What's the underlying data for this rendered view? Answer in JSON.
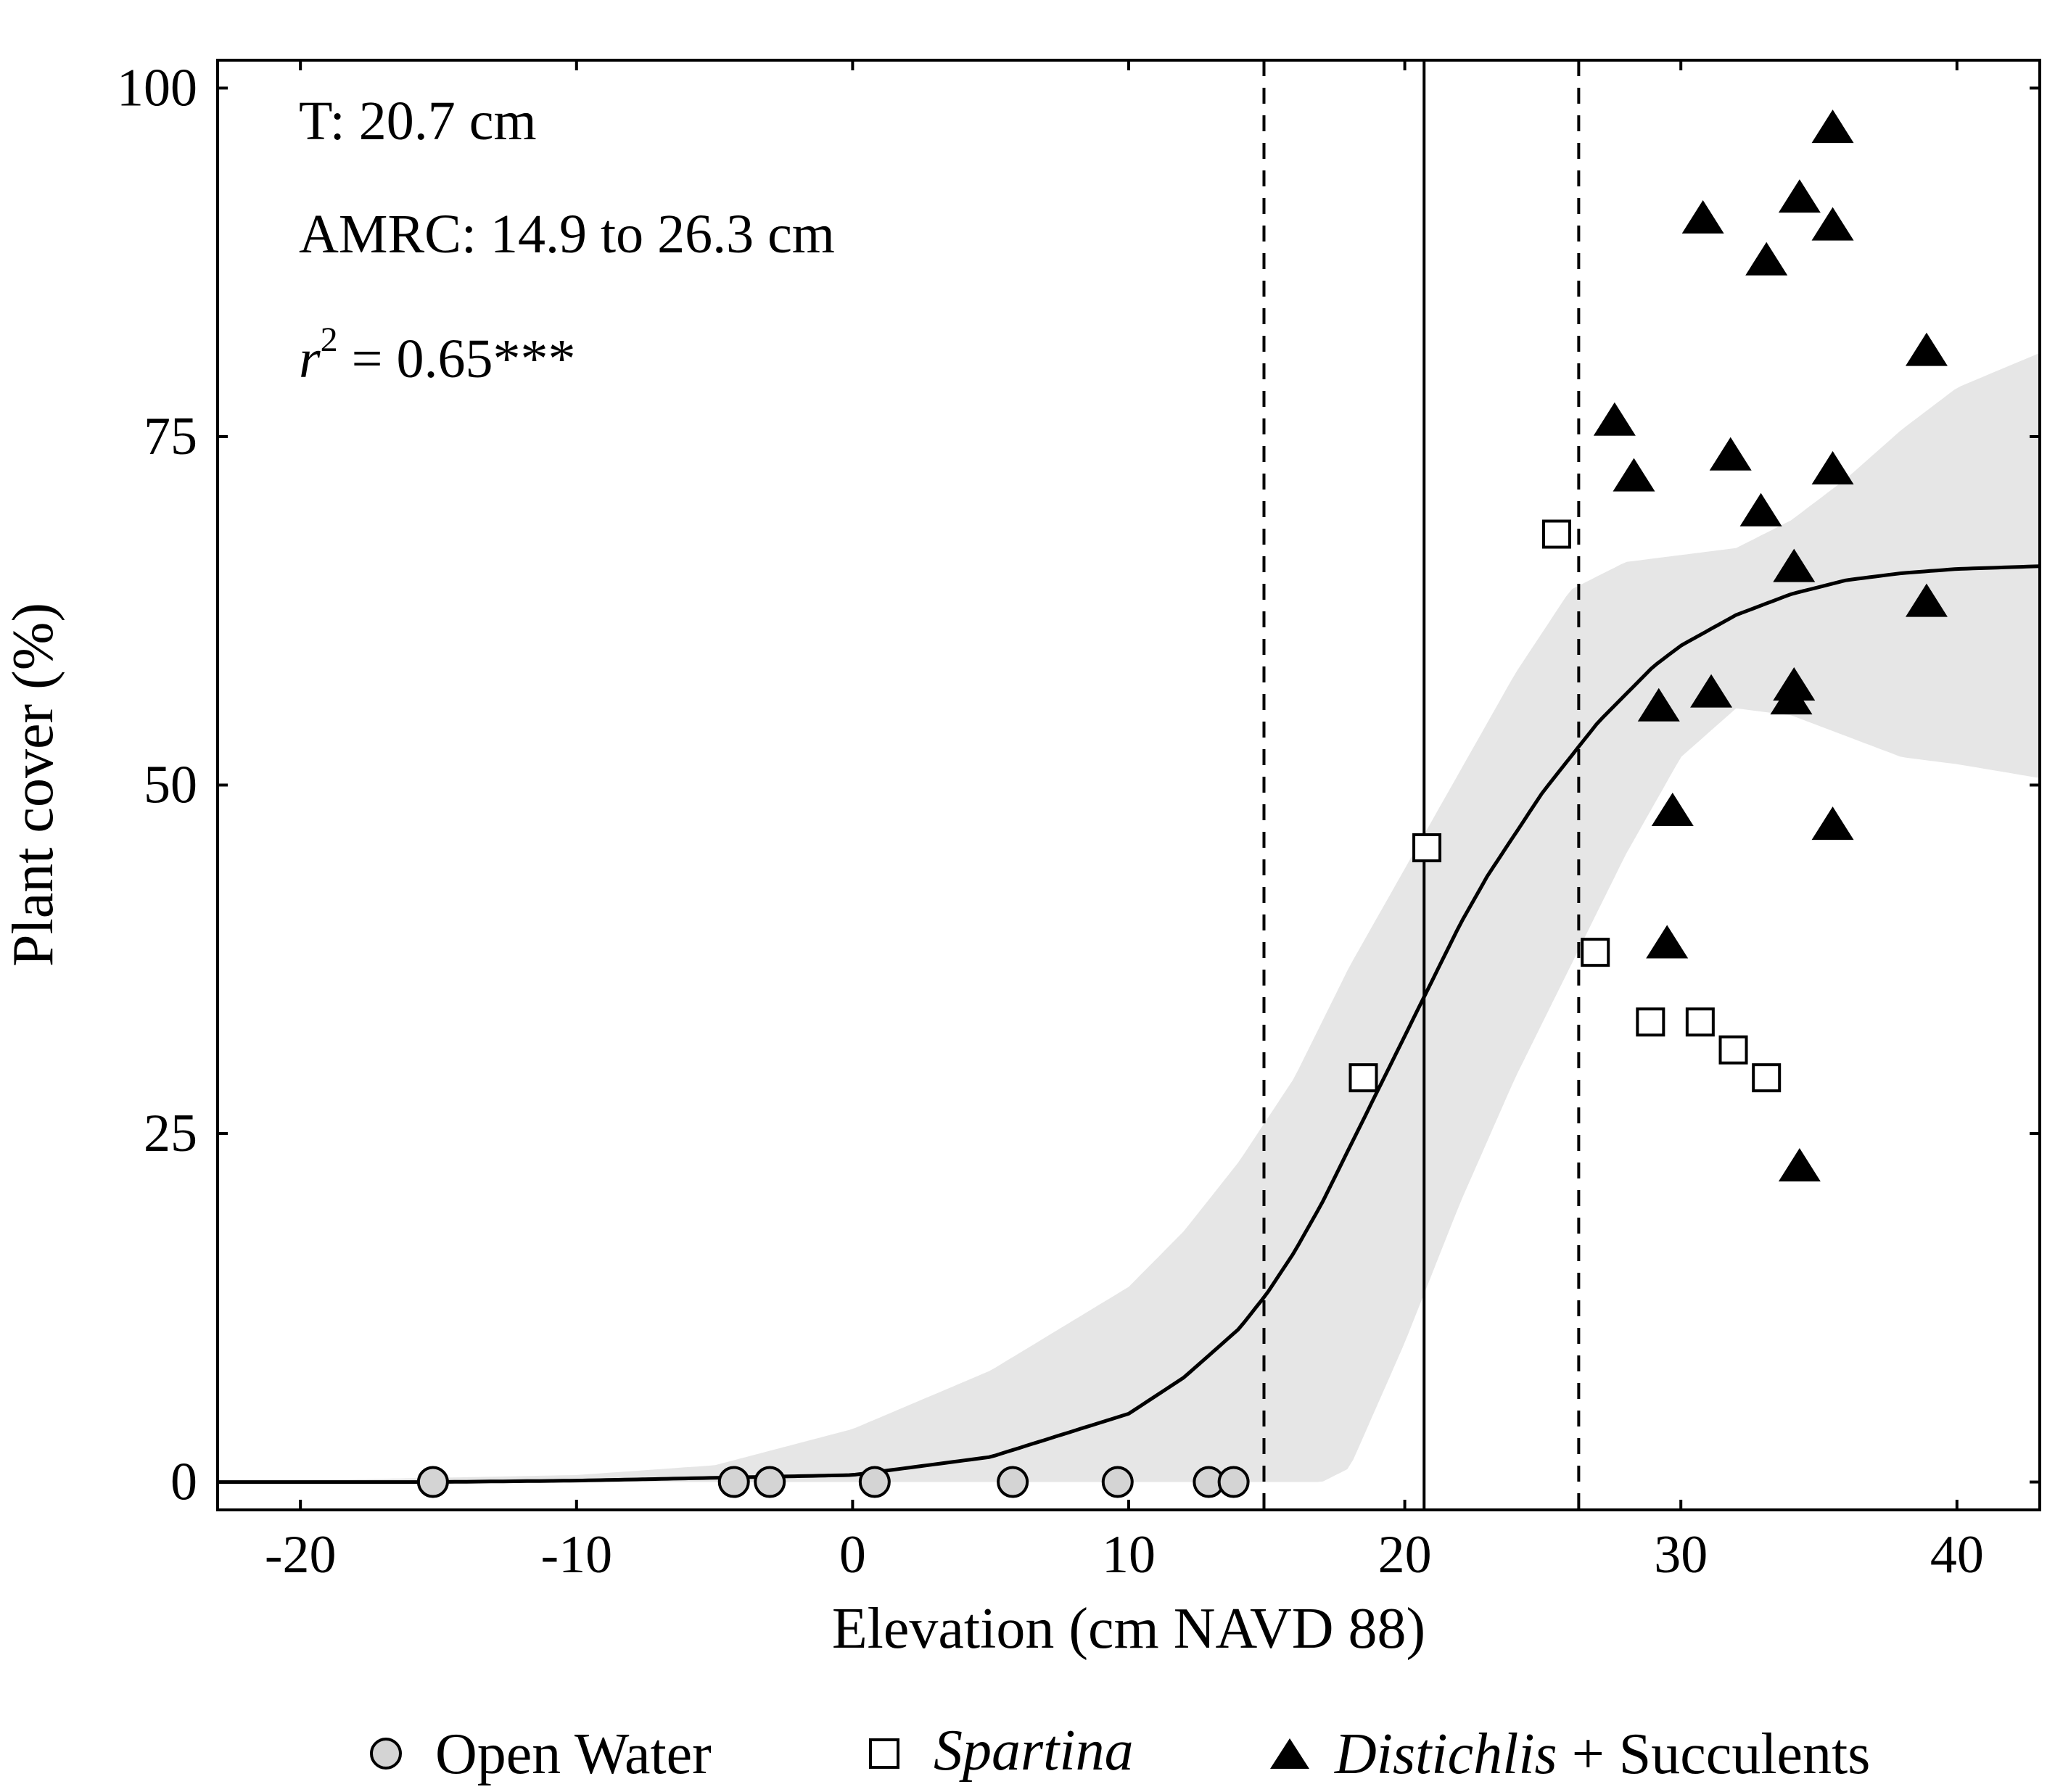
{
  "chart_data": {
    "type": "scatter",
    "xlabel": "Elevation (cm NAVD 88)",
    "ylabel": "Plant cover (%)",
    "xlim": [
      -23,
      43
    ],
    "ylim": [
      -2,
      102
    ],
    "xticks": [
      -20,
      -10,
      0,
      10,
      20,
      30,
      40
    ],
    "yticks": [
      0,
      25,
      50,
      75,
      100
    ],
    "xtick_labels": [
      "-20",
      "-10",
      "0",
      "10",
      "20",
      "30",
      "40"
    ],
    "ytick_labels": [
      "0",
      "25",
      "50",
      "75",
      "100"
    ],
    "grid": false,
    "annotations": {
      "threshold": "T: 20.7 cm",
      "amrc": "AMRC: 14.9 to 26.3 cm",
      "r2_symbol": "r",
      "r2_exponent": "2",
      "r2_value": " = 0.65***"
    },
    "threshold_line": 20.7,
    "amrc_range": [
      14.9,
      26.3
    ],
    "fit_curve": {
      "x": [
        -23,
        -20,
        -15,
        -10,
        -5,
        0,
        5,
        10,
        12,
        14,
        15,
        16,
        17,
        18,
        19,
        20,
        21,
        22,
        23,
        24,
        25,
        26,
        27,
        28,
        29,
        30,
        32,
        34,
        36,
        38,
        40,
        43
      ],
      "y": [
        0,
        0,
        0,
        0.1,
        0.3,
        0.5,
        1.8,
        4.9,
        7.5,
        11,
        13.5,
        16.5,
        20,
        24,
        28,
        32,
        36,
        40,
        43.5,
        46.5,
        49.5,
        52,
        54.5,
        56.5,
        58.5,
        60,
        62.2,
        63.7,
        64.7,
        65.2,
        65.5,
        65.7
      ]
    },
    "confidence_band": {
      "x": [
        -23,
        -10,
        -5,
        0,
        5,
        10,
        12,
        14,
        16,
        17,
        18,
        20,
        22,
        24,
        26,
        28,
        30,
        32,
        34,
        36,
        38,
        40,
        43
      ],
      "upper": [
        0,
        0.5,
        1.2,
        3.8,
        8,
        14,
        18,
        23,
        29,
        33,
        37,
        44,
        51,
        58,
        64,
        66,
        66.5,
        67,
        69,
        72,
        75.5,
        78.5,
        81
      ],
      "lower": [
        0,
        0,
        0,
        0,
        0,
        0,
        0,
        0,
        0,
        0,
        1,
        10,
        20,
        29,
        37,
        45,
        52,
        55.5,
        55,
        53.5,
        52,
        51.5,
        50.5
      ]
    },
    "series": [
      {
        "name": "Open Water",
        "marker": "circle",
        "color": "#d4d4d4",
        "points": [
          [
            -15.2,
            0
          ],
          [
            -4.3,
            0
          ],
          [
            -3,
            0
          ],
          [
            0.8,
            0
          ],
          [
            5.8,
            0
          ],
          [
            9.6,
            0
          ],
          [
            12.9,
            0
          ],
          [
            13.8,
            0
          ]
        ]
      },
      {
        "name": "Spartina",
        "marker": "square",
        "color": "#ffffff",
        "points": [
          [
            18.5,
            29
          ],
          [
            20.8,
            45.5
          ],
          [
            25.5,
            68
          ],
          [
            26.9,
            38
          ],
          [
            28.9,
            33
          ],
          [
            30.7,
            33
          ],
          [
            31.9,
            31
          ],
          [
            33.1,
            29
          ]
        ]
      },
      {
        "name": "Distichlis + Succulents",
        "marker": "triangle",
        "color": "#000000",
        "points": [
          [
            35.5,
            97
          ],
          [
            34.3,
            92
          ],
          [
            30.8,
            90.5
          ],
          [
            35.5,
            90
          ],
          [
            33.1,
            87.5
          ],
          [
            38.9,
            81
          ],
          [
            27.6,
            76
          ],
          [
            31.8,
            73.5
          ],
          [
            28.3,
            72
          ],
          [
            35.5,
            72.5
          ],
          [
            32.9,
            69.5
          ],
          [
            34.1,
            65.5
          ],
          [
            38.9,
            63
          ],
          [
            34.1,
            57
          ],
          [
            31.1,
            56.5
          ],
          [
            34,
            56
          ],
          [
            29.2,
            55.5
          ],
          [
            29.7,
            48
          ],
          [
            35.5,
            47
          ],
          [
            29.5,
            38.5
          ],
          [
            34.3,
            22.5
          ]
        ]
      }
    ],
    "legend": [
      {
        "label": "Open Water",
        "italic": false
      },
      {
        "label": "Spartina",
        "italic": true
      },
      {
        "label": "Distichlis",
        "suffix": " + Succulents",
        "italic": true
      }
    ]
  }
}
